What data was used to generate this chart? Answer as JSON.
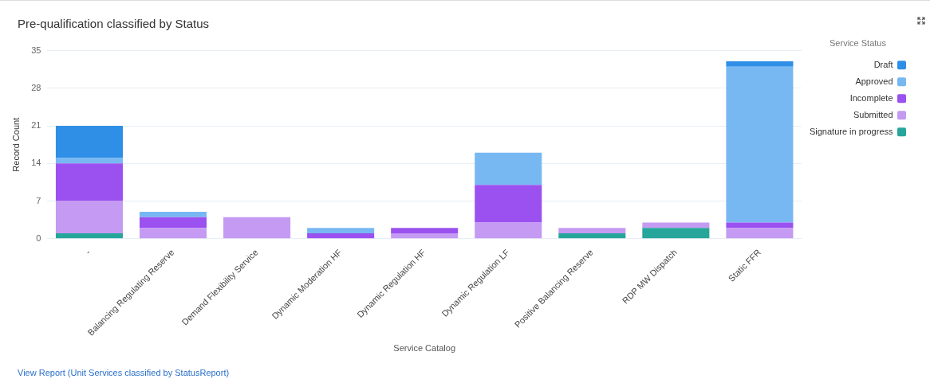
{
  "chart_data": {
    "type": "bar",
    "title": "Pre-qualification classified by Status",
    "xlabel": "Service Catalog",
    "ylabel": "Record Count",
    "legend_title": "Service Status",
    "categories": [
      "-",
      "Balancing Regulating Reserve",
      "Demand Flexibility Service",
      "Dynamic Moderation HF",
      "Dynamic Regulation HF",
      "Dynamic Regulation LF",
      "Positive Balancing Reserve",
      "RDP MW Dispatch",
      "Static FFR"
    ],
    "series": [
      {
        "name": "Signature in progress",
        "color": "#26a69a",
        "values": [
          1,
          0,
          0,
          0,
          0,
          0,
          1,
          2,
          0
        ]
      },
      {
        "name": "Submitted",
        "color": "#c49af2",
        "values": [
          6,
          2,
          4,
          0,
          1,
          3,
          1,
          1,
          2
        ]
      },
      {
        "name": "Incomplete",
        "color": "#9b51f0",
        "values": [
          7,
          2,
          0,
          1,
          1,
          7,
          0,
          0,
          1
        ]
      },
      {
        "name": "Approved",
        "color": "#78b8f2",
        "values": [
          1,
          1,
          0,
          1,
          0,
          6,
          0,
          0,
          29
        ]
      },
      {
        "name": "Draft",
        "color": "#2f8fe6",
        "values": [
          6,
          0,
          0,
          0,
          0,
          0,
          0,
          0,
          1
        ]
      }
    ],
    "stacked": true,
    "ylim": [
      0,
      35
    ],
    "yticks": [
      0,
      7,
      14,
      21,
      28,
      35
    ],
    "grid": "y",
    "legend": "top right",
    "annotations": [
      "View Report (Unit Services classified by StatusReport)"
    ]
  }
}
